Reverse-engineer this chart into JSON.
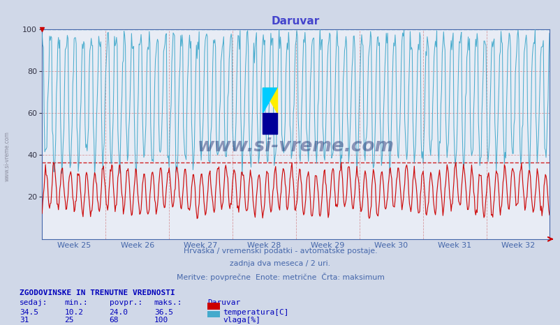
{
  "title": "Daruvar",
  "title_color": "#4444cc",
  "bg_color": "#d0d8e8",
  "plot_bg_color": "#e8ecf5",
  "xlabel_text1": "Hrvaška / vremenski podatki - avtomatske postaje.",
  "xlabel_text2": "zadnja dva meseca / 2 uri.",
  "xlabel_text3": "Meritve: povprečne  Enote: metrične  Črta: maksimum",
  "xlabel_color": "#4466aa",
  "week_labels": [
    "Week 25",
    "Week 26",
    "Week 27",
    "Week 28",
    "Week 29",
    "Week 30",
    "Week 31",
    "Week 32"
  ],
  "ylim": [
    0,
    100
  ],
  "yticks": [
    20,
    40,
    60,
    80,
    100
  ],
  "temp_color": "#cc0000",
  "humidity_color": "#44aacc",
  "temp_max_value": 36.5,
  "humidity_max_value": 100,
  "n_points": 744,
  "temp_min": 10.2,
  "temp_max": 36.5,
  "temp_avg": 24.0,
  "temp_current": 34.5,
  "hum_min": 25,
  "hum_max": 100,
  "hum_avg": 68,
  "hum_current": 31,
  "watermark": "www.si-vreme.com",
  "watermark_color": "#1a2a6c",
  "footer_bold": "ZGODOVINSKE IN TRENUTNE VREDNOSTI",
  "footer_col1": "sedaj:",
  "footer_col2": "min.:",
  "footer_col3": "povpr.:",
  "footer_col4": "maks.:",
  "footer_station": "Daruvar",
  "legend_temp": "temperatura[C]",
  "legend_hum": "vlaga[%]",
  "grid_color": "#cc6666",
  "spine_color": "#4466aa",
  "left_watermark": "www.si-vreme.com"
}
